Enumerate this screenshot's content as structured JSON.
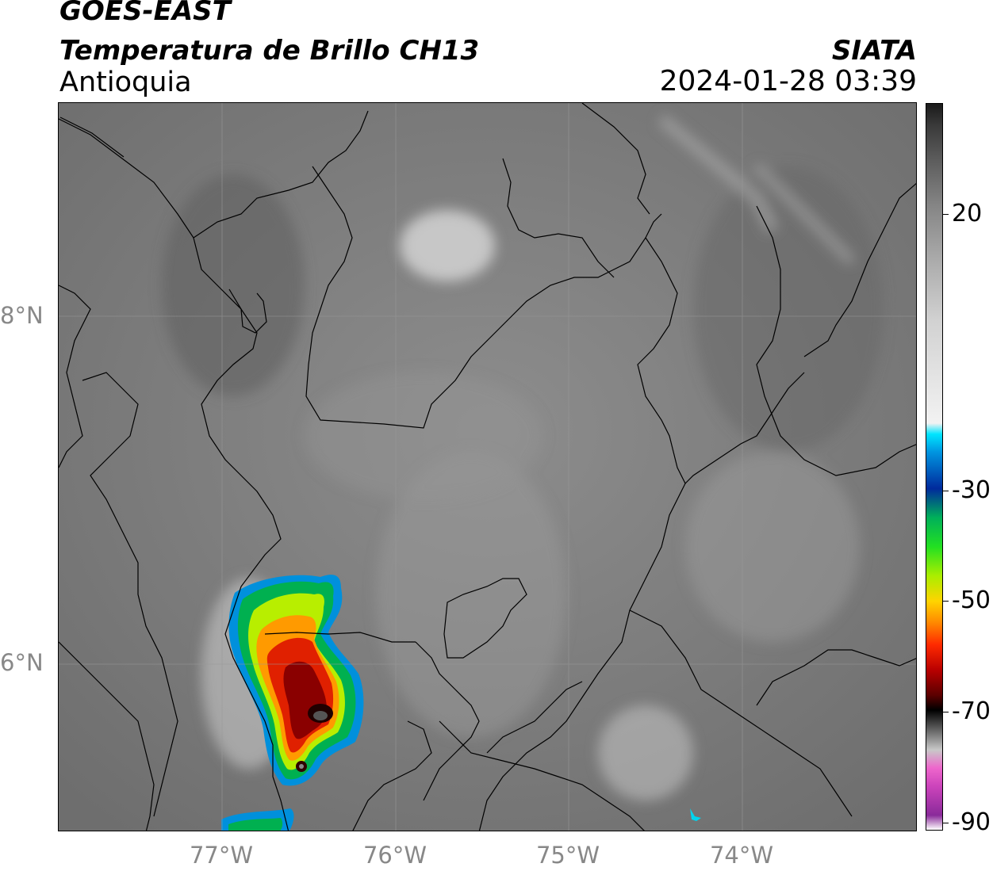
{
  "header": {
    "satellite": "GOES-EAST",
    "product": "Temperatura de Brillo CH13",
    "region": "Antioquia",
    "organization": "SIATA",
    "datetime": "2024-01-28 03:39"
  },
  "map": {
    "lat_labels": [
      "8°N",
      "6°N"
    ],
    "lon_labels": [
      "77°W",
      "76°W",
      "75°W",
      "74°W"
    ],
    "gridlines": true
  },
  "colorbar": {
    "ticks": [
      "20",
      "-30",
      "-50",
      "-70",
      "-90"
    ],
    "segments": [
      {
        "color": "#1a1a1a"
      },
      {
        "color": "#3a3a3a"
      },
      {
        "color": "#5e5e5e"
      },
      {
        "color": "#858585"
      },
      {
        "color": "#adadad"
      },
      {
        "color": "#d2d2d2"
      },
      {
        "color": "#f2f2f2"
      },
      {
        "color": "#00e5ff"
      },
      {
        "color": "#0094e0"
      },
      {
        "color": "#002a9c"
      },
      {
        "color": "#00b05a"
      },
      {
        "color": "#22e022"
      },
      {
        "color": "#aaee00"
      },
      {
        "color": "#ffd400"
      },
      {
        "color": "#ff8800"
      },
      {
        "color": "#ff2a00"
      },
      {
        "color": "#b80000"
      },
      {
        "color": "#5a0000"
      },
      {
        "color": "#000000"
      },
      {
        "color": "#5a5a5a"
      },
      {
        "color": "#c8c8c8"
      },
      {
        "color": "#ee66cc"
      },
      {
        "color": "#cc44bb"
      },
      {
        "color": "#8a2a9a"
      },
      {
        "color": "#ffffff"
      }
    ]
  }
}
